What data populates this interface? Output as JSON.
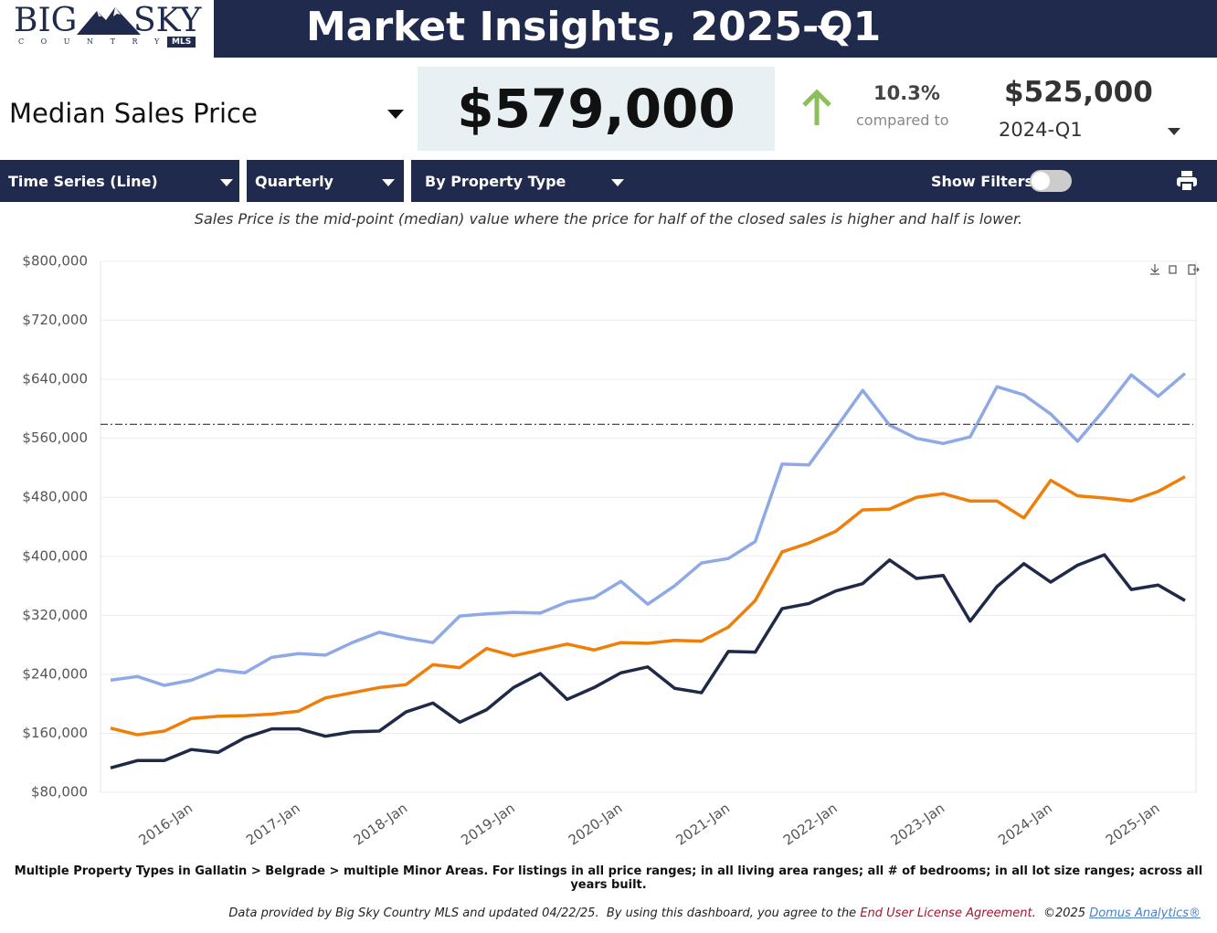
{
  "header": {
    "logo_left": "BIG",
    "logo_right": "SKY",
    "logo_sub": "C O U N T R Y",
    "logo_badge": "MLS",
    "title": "Market Insights, 2025-Q1"
  },
  "metric": {
    "name": "Median Sales Price",
    "value": "$579,000",
    "change": "10.3%",
    "compared_label": "compared to",
    "compare_value": "$525,000",
    "compare_period": "2024-Q1"
  },
  "toolbar": {
    "chart_type": "Time Series (Line)",
    "interval": "Quarterly",
    "grouping": "By Property Type",
    "filters_label": "Show Filters:"
  },
  "description": "Sales Price is the mid-point (median) value where the price for half of the closed sales is higher and half is lower.",
  "chart_data": {
    "type": "line",
    "categories": [
      null,
      null,
      null,
      "2016-Jan",
      null,
      null,
      null,
      "2017-Jan",
      null,
      null,
      null,
      "2018-Jan",
      null,
      null,
      null,
      "2019-Jan",
      null,
      null,
      null,
      "2020-Jan",
      null,
      null,
      null,
      "2021-Jan",
      null,
      null,
      null,
      "2022-Jan",
      null,
      null,
      null,
      "2023-Jan",
      null,
      null,
      null,
      "2024-Jan",
      null,
      null,
      null,
      "2025-Jan",
      null
    ],
    "series": [
      {
        "color": "#8ea9e6",
        "values": [
          232000,
          237000,
          225000,
          232000,
          246000,
          242000,
          263000,
          268000,
          266000,
          283000,
          297000,
          289000,
          283000,
          319000,
          322000,
          324000,
          323000,
          338000,
          344000,
          366000,
          335000,
          360000,
          391000,
          397000,
          420000,
          525000,
          524000,
          574000,
          625000,
          578000,
          560000,
          553000,
          562000,
          630000,
          619000,
          593000,
          556000,
          599000,
          646000,
          617000,
          648000
        ]
      },
      {
        "color": "#f07f0a",
        "values": [
          167000,
          158000,
          163000,
          180000,
          183000,
          184000,
          186000,
          190000,
          208000,
          215000,
          222000,
          226000,
          253000,
          249000,
          275000,
          265000,
          273000,
          281000,
          273000,
          283000,
          282000,
          286000,
          285000,
          304000,
          340000,
          406000,
          418000,
          434000,
          463000,
          464000,
          480000,
          485000,
          475000,
          475000,
          452000,
          503000,
          482000,
          479000,
          475000,
          488000,
          508000
        ]
      },
      {
        "color": "#1f2a48",
        "values": [
          113000,
          123000,
          123000,
          138000,
          134000,
          154000,
          166000,
          166000,
          156000,
          162000,
          163000,
          189000,
          201000,
          175000,
          192000,
          222000,
          241000,
          206000,
          222000,
          242000,
          250000,
          221000,
          215000,
          271000,
          270000,
          329000,
          336000,
          353000,
          363000,
          395000,
          370000,
          374000,
          312000,
          359000,
          390000,
          365000,
          388000,
          402000,
          355000,
          361000,
          340000
        ]
      }
    ],
    "reference_line": 579000,
    "ylim": [
      80000,
      800000
    ],
    "yticks": [
      {
        "value": 80000,
        "label": "$80,000"
      },
      {
        "value": 160000,
        "label": "$160,000"
      },
      {
        "value": 240000,
        "label": "$240,000"
      },
      {
        "value": 320000,
        "label": "$320,000"
      },
      {
        "value": 400000,
        "label": "$400,000"
      },
      {
        "value": 480000,
        "label": "$480,000"
      },
      {
        "value": 560000,
        "label": "$560,000"
      },
      {
        "value": 640000,
        "label": "$640,000"
      },
      {
        "value": 720000,
        "label": "$720,000"
      },
      {
        "value": 800000,
        "label": "$800,000"
      }
    ],
    "grid": true
  },
  "footnote": "Multiple Property Types in Gallatin > Belgrade > multiple Minor Areas. For listings in all price ranges; in all living area ranges; all # of bedrooms; in all lot size ranges; across all years built.",
  "credits": {
    "text": "Data provided by Big Sky Country MLS and updated 04/22/25.  By using this dashboard, you agree to the ",
    "link1": "End User License Agreement",
    "mid": ".  ©2025 ",
    "link2": "Domus Analytics®"
  }
}
